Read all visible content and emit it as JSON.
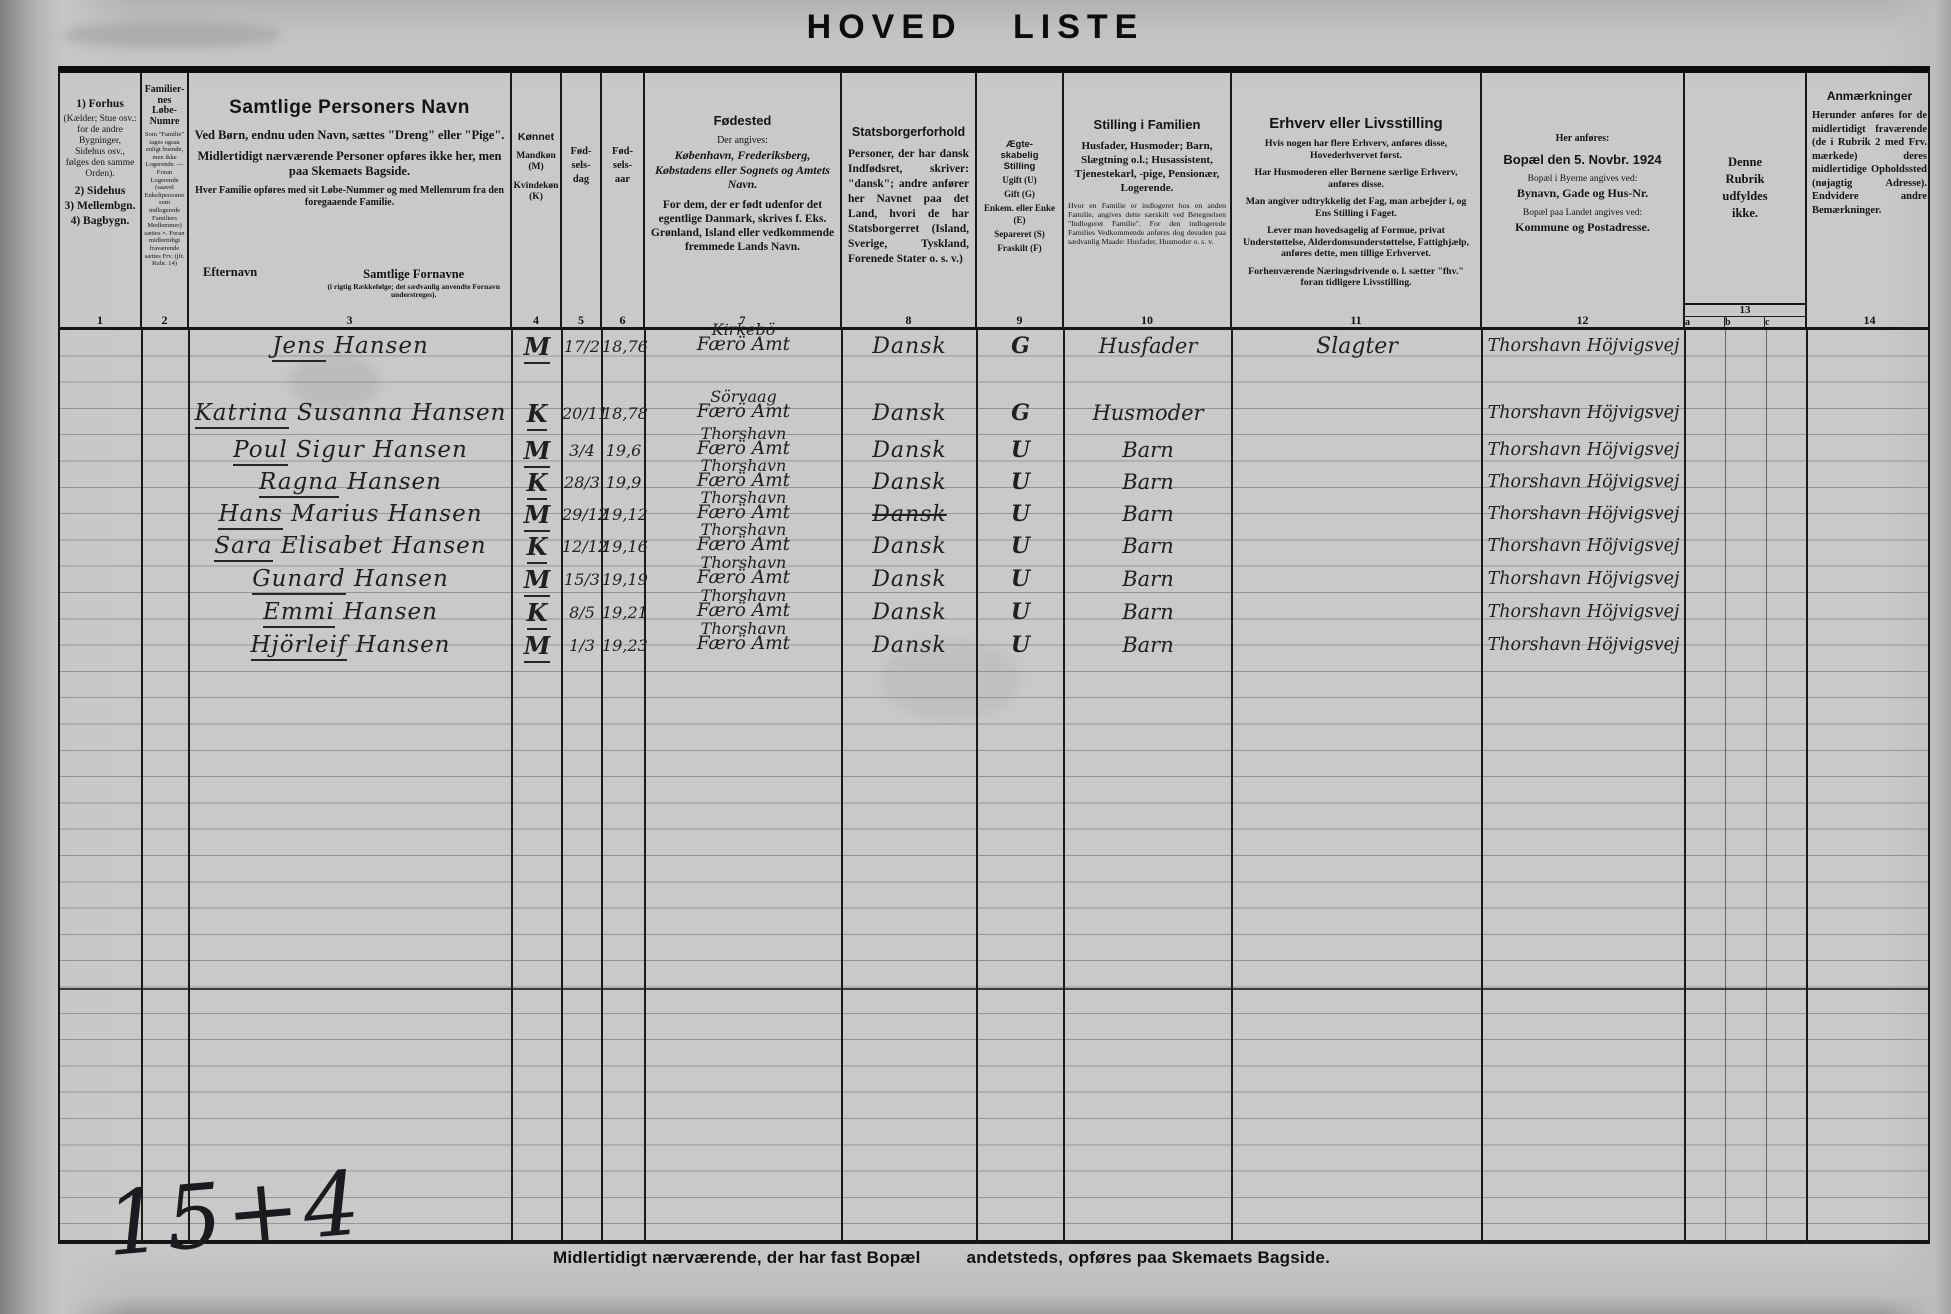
{
  "title": "HOVED LISTE",
  "columns": {
    "c1": {
      "num": "1",
      "b1": "1) Forhus",
      "t1": "(Kælder; Stue osv.: for de andre Bygninger, Sidehus osv., følges den samme Orden).",
      "b2": "2) Sidehus",
      "b3": "3) Mellembgn.",
      "b4": "4) Bagbygn."
    },
    "c2": {
      "num": "2",
      "title_lines": [
        "Familier-",
        "nes",
        "Løbe-",
        "Numre"
      ],
      "note": "Som \"Familie\" tages ogsaa enligt boende, men ikke Logerende. — Foran Logerende (saavel Enkeltpersoner som indlogerede Familiers Medlemmer) sættes ×. Foran midlertidigt fraværende sættes Frv. (jfr. Rubr. 14)"
    },
    "c3": {
      "num": "3",
      "title": "Samtlige Personers Navn",
      "p1": "Ved Børn, endnu uden Navn, sættes \"Dreng\" eller \"Pige\".",
      "p2": "Midlertidigt nærværende Personer opføres ikke her, men paa Skemaets Bagside.",
      "p3": "Hver Familie opføres med sit Løbe-Nummer og med Mellemrum fra den foregaaende Familie.",
      "sub_left": "Efternavn",
      "sub_right": "Samtlige Fornavne",
      "sub_right_note": "(i rigtig Rækkefølge; det sædvanlig anvendte Fornavn understreges)."
    },
    "c4": {
      "num": "4",
      "title": "Kønnet",
      "l1": "Mandkøn (M)",
      "l2": "Kvindekøn (K)"
    },
    "c5": {
      "num": "5",
      "lines": [
        "Fød-",
        "sels-",
        "dag"
      ]
    },
    "c6": {
      "num": "6",
      "lines": [
        "Fød-",
        "sels-",
        "aar"
      ]
    },
    "c7": {
      "num": "7",
      "title": "Fødested",
      "p0": "Der angives:",
      "p1": "København, Frederiksberg, Købstadens eller Sognets og Amtets Navn.",
      "p2": "For dem, der er født udenfor det egentlige Danmark, skrives f. Eks. Grønland, Island eller vedkommende fremmede Lands Navn."
    },
    "c8": {
      "num": "8",
      "title": "Statsborgerforhold",
      "p1": "Personer, der har dansk Indfødsret, skriver: \"dansk\"; andre anfører her Navnet paa det Land, hvori de har Statsborgerret (Island, Sverige, Tyskland, Forenede Stater o. s. v.)"
    },
    "c9": {
      "num": "9",
      "title_lines": [
        "Ægte-",
        "skabelig",
        "Stilling"
      ],
      "opts": [
        "Ugift (U)",
        "Gift (G)",
        "Enkem. eller Enke (E)",
        "Separeret (S)",
        "Fraskilt (F)"
      ]
    },
    "c10": {
      "num": "10",
      "title": "Stilling i Familien",
      "p1": "Husfader, Husmoder; Barn, Slægtning o.l.; Husassistent, Tjenestekarl, -pige, Pensionær, Logerende.",
      "p2": "Hvor en Familie er indlogeret hos en anden Familie, angives dette særskilt ved Betegnelsen \"Indlogeret Familie\". For den indlogerede Families Vedkommende anføres dog desuden paa sædvanlig Maade: Husfader, Husmoder o. s. v."
    },
    "c11": {
      "num": "11",
      "title": "Erhverv eller Livsstilling",
      "p1": "Hvis nogen har flere Erhverv, anføres disse, Hovederhvervet først.",
      "p2": "Har Husmoderen eller Børnene særlige Erhverv, anføres disse.",
      "p3": "Man angiver udtrykkelig det Fag, man arbejder i, og Ens Stilling i Faget.",
      "p4": "Lever man hovedsagelig af Formue, privat Understøttelse, Alderdomsunderstøttelse, Fattighjælp, anføres dette, men tillige Erhvervet.",
      "p5": "Forhenværende Næringsdrivende o. l. sætter \"fhv.\" foran tidligere Livsstilling.",
      "p6": ""
    },
    "c12": {
      "num": "12",
      "pre": "Her anføres:",
      "title": "Bopæl den 5. Novbr. 1924",
      "p1": "Bopæl i Byerne angives ved:",
      "p2": "Bynavn, Gade og Hus-Nr.",
      "p3": "Bopæl paa Landet angives ved:",
      "p4": "Kommune og Postadresse."
    },
    "c13": {
      "num": "13",
      "title": "Denne Rubrik udfyldes ikke.",
      "subs": [
        "a",
        "b",
        "c"
      ]
    },
    "c14": {
      "num": "14",
      "title": "Anmærkninger",
      "p1": "Herunder anføres for de midlertidigt fraværende (de i Rubrik 2 med Frv. mærkede) deres midlertidige Opholdssted (nøjagtig Adresse). Endvidere andre Bemærkninger."
    }
  },
  "rows": [
    {
      "first": "Jens",
      "rest": "Hansen",
      "sex": "M",
      "birth_day": "17/2",
      "birth_year": "18,76",
      "birth_place": "Kirkebö",
      "birth_amt": "Færö Amt",
      "citizenship": "Dansk",
      "marital": "G",
      "family_position": "Husfader",
      "occupation": "Slagter",
      "residence": "Thorshavn Höjvigsvej"
    },
    {
      "first": "Katrina",
      "rest": "Susanna Hansen",
      "sex": "K",
      "birth_day": "20/11",
      "birth_year": "18,78",
      "birth_place": "Sörvaag",
      "birth_amt": "Færö Amt",
      "citizenship": "Dansk",
      "marital": "G",
      "family_position": "Husmoder",
      "occupation": "",
      "residence": "Thorshavn Höjvigsvej"
    },
    {
      "first": "Poul",
      "rest": "Sigur Hansen",
      "sex": "M",
      "birth_day": "3/4",
      "birth_year": "19,6",
      "birth_place": "Thorshavn",
      "birth_amt": "Færö Amt",
      "citizenship": "Dansk",
      "marital": "U",
      "family_position": "Barn",
      "occupation": "",
      "residence": "Thorshavn Höjvigsvej"
    },
    {
      "first": "Ragna",
      "rest": "Hansen",
      "sex": "K",
      "birth_day": "28/3",
      "birth_year": "19,9",
      "birth_place": "Thorshavn",
      "birth_amt": "Færö Amt",
      "citizenship": "Dansk",
      "marital": "U",
      "family_position": "Barn",
      "occupation": "",
      "residence": "Thorshavn Höjvigsvej"
    },
    {
      "first": "Hans",
      "rest": "Marius Hansen",
      "sex": "M",
      "birth_day": "29/12",
      "birth_year": "19,12",
      "birth_place": "Thorshavn",
      "birth_amt": "Færö Amt",
      "citizenship": "Dansk",
      "citizenship_struck": true,
      "marital": "U",
      "family_position": "Barn",
      "occupation": "",
      "residence": "Thorshavn Höjvigsvej"
    },
    {
      "first": "Sara",
      "rest": "Elisabet Hansen",
      "sex": "K",
      "birth_day": "12/12",
      "birth_year": "19,16",
      "birth_place": "Thorshavn",
      "birth_amt": "Færö Amt",
      "citizenship": "Dansk",
      "marital": "U",
      "family_position": "Barn",
      "occupation": "",
      "residence": "Thorshavn Höjvigsvej"
    },
    {
      "first": "Gunard",
      "rest": "Hansen",
      "sex": "M",
      "birth_day": "15/3",
      "birth_year": "19,19",
      "birth_place": "Thorshavn",
      "birth_amt": "Færö Amt",
      "citizenship": "Dansk",
      "marital": "U",
      "family_position": "Barn",
      "occupation": "",
      "residence": "Thorshavn Höjvigsvej"
    },
    {
      "first": "Emmi",
      "rest": "Hansen",
      "sex": "K",
      "birth_day": "8/5",
      "birth_year": "19,21",
      "birth_place": "Thorshavn",
      "birth_amt": "Færö Amt",
      "citizenship": "Dansk",
      "marital": "U",
      "family_position": "Barn",
      "occupation": "",
      "residence": "Thorshavn Höjvigsvej"
    },
    {
      "first": "Hjörleif",
      "rest": "Hansen",
      "sex": "M",
      "birth_day": "1/3",
      "birth_year": "19,23",
      "birth_place": "Thorshavn",
      "birth_amt": "Færö Amt",
      "citizenship": "Dansk",
      "marital": "U",
      "family_position": "Barn",
      "occupation": "",
      "residence": "Thorshavn Höjvigsvej"
    }
  ],
  "footer": {
    "note_left": "Midlertidigt nærværende, der har fast Bopæl",
    "note_right": "andetsteds, opføres paa Skemaets Bagside.",
    "tally": "15+4"
  },
  "colors": {
    "paper": "#c8c8c8",
    "ink": "#202024",
    "print": "#141414"
  }
}
